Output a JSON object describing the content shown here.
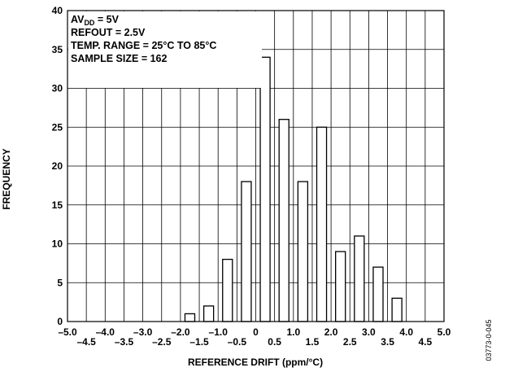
{
  "chart_data": {
    "type": "bar",
    "title": "",
    "xlabel": "REFERENCE DRIFT (ppm/°C)",
    "ylabel": "FREQUENCY",
    "ylim": [
      0,
      40
    ],
    "xlim": [
      -5.0,
      5.0
    ],
    "grid": true,
    "y_ticks": [
      "0",
      "5",
      "10",
      "15",
      "20",
      "25",
      "30",
      "35",
      "40"
    ],
    "x_ticks_upper": [
      "–5.0",
      "–4.0",
      "–3.0",
      "–2.0",
      "–1.0",
      "0",
      "1.0",
      "2.0",
      "3.0",
      "4.0",
      "5.0"
    ],
    "x_ticks_lower": [
      "–4.5",
      "–3.5",
      "–2.5",
      "–1.5",
      "–0.5",
      "0.5",
      "1.5",
      "2.5",
      "3.5",
      "4.5"
    ],
    "categories": [
      -1.75,
      -1.25,
      -0.75,
      -0.25,
      0.25,
      0.75,
      1.25,
      1.75,
      2.25,
      2.75,
      3.25,
      3.75
    ],
    "values": [
      1,
      2,
      8,
      18,
      34,
      26,
      18,
      25,
      9,
      11,
      7,
      3
    ],
    "annotations": {
      "avdd_prefix": "AV",
      "avdd_sub": "DD",
      "avdd_value": " = 5V",
      "refout": "REFOUT = 2.5V",
      "temp_range": "TEMP. RANGE = 25°C TO 85°C",
      "sample_size": "SAMPLE SIZE = 162"
    }
  },
  "figure_id": "03773-0-045"
}
